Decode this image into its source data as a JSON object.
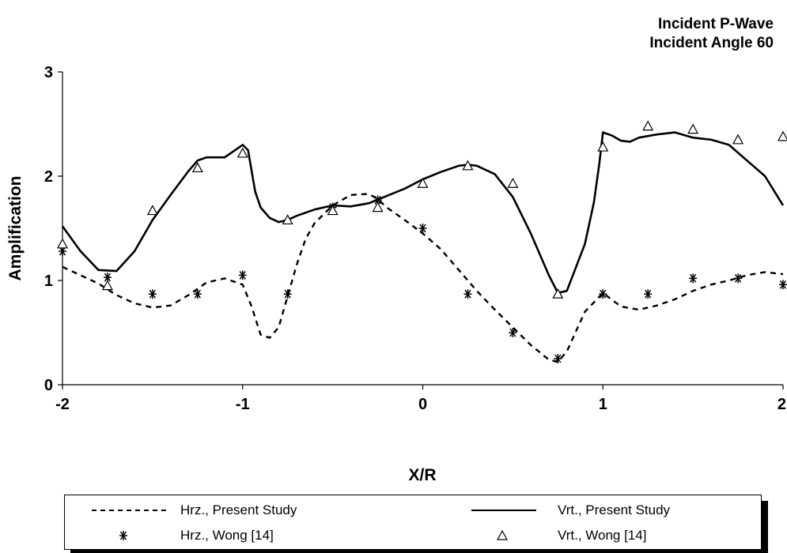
{
  "title_lines": [
    "Incident P-Wave",
    "Incident Angle 60"
  ],
  "chart_data": {
    "type": "line",
    "xlabel": "X/R",
    "ylabel": "Amplification",
    "xlim": [
      -2,
      2
    ],
    "ylim": [
      0,
      3
    ],
    "xticks": [
      -2,
      -1,
      0,
      1,
      2
    ],
    "yticks": [
      0,
      1,
      2,
      3
    ],
    "xtick_labels": [
      "-2",
      "-1",
      "0",
      "1",
      "2"
    ],
    "ytick_labels": [
      "0",
      "1",
      "2",
      "3"
    ],
    "grid": false,
    "legend_position": "bottom",
    "series": [
      {
        "name": "Hrz., Present Study",
        "style": "dashed",
        "x": [
          -2.0,
          -1.9,
          -1.8,
          -1.7,
          -1.6,
          -1.5,
          -1.4,
          -1.3,
          -1.2,
          -1.1,
          -1.0,
          -0.95,
          -0.9,
          -0.85,
          -0.8,
          -0.75,
          -0.7,
          -0.65,
          -0.6,
          -0.5,
          -0.4,
          -0.3,
          -0.25,
          -0.2,
          -0.1,
          0.0,
          0.1,
          0.2,
          0.3,
          0.4,
          0.5,
          0.6,
          0.7,
          0.75,
          0.8,
          0.9,
          1.0,
          1.1,
          1.2,
          1.3,
          1.4,
          1.5,
          1.6,
          1.7,
          1.8,
          1.9,
          2.0
        ],
        "y": [
          1.13,
          1.05,
          0.97,
          0.86,
          0.78,
          0.74,
          0.76,
          0.86,
          0.98,
          1.02,
          0.96,
          0.75,
          0.48,
          0.45,
          0.55,
          0.85,
          1.15,
          1.4,
          1.55,
          1.72,
          1.82,
          1.83,
          1.78,
          1.7,
          1.58,
          1.45,
          1.3,
          1.1,
          0.9,
          0.72,
          0.55,
          0.38,
          0.24,
          0.22,
          0.32,
          0.7,
          0.88,
          0.75,
          0.72,
          0.76,
          0.82,
          0.9,
          0.96,
          1.0,
          1.05,
          1.08,
          1.06
        ]
      },
      {
        "name": "Vrt., Present Study",
        "style": "solid",
        "x": [
          -2.0,
          -1.9,
          -1.8,
          -1.7,
          -1.6,
          -1.5,
          -1.4,
          -1.3,
          -1.25,
          -1.2,
          -1.1,
          -1.05,
          -1.0,
          -0.97,
          -0.93,
          -0.9,
          -0.85,
          -0.8,
          -0.75,
          -0.7,
          -0.6,
          -0.5,
          -0.4,
          -0.3,
          -0.2,
          -0.1,
          0.0,
          0.1,
          0.2,
          0.25,
          0.3,
          0.4,
          0.5,
          0.6,
          0.7,
          0.75,
          0.8,
          0.9,
          0.95,
          0.98,
          1.0,
          1.05,
          1.1,
          1.15,
          1.2,
          1.3,
          1.4,
          1.5,
          1.6,
          1.7,
          1.8,
          1.9,
          2.0
        ],
        "y": [
          1.52,
          1.28,
          1.1,
          1.09,
          1.28,
          1.58,
          1.82,
          2.05,
          2.15,
          2.18,
          2.18,
          2.24,
          2.3,
          2.25,
          1.85,
          1.7,
          1.6,
          1.56,
          1.58,
          1.62,
          1.68,
          1.72,
          1.71,
          1.74,
          1.81,
          1.88,
          1.97,
          2.04,
          2.1,
          2.11,
          2.1,
          2.02,
          1.8,
          1.45,
          1.05,
          0.88,
          0.9,
          1.35,
          1.75,
          2.12,
          2.42,
          2.39,
          2.34,
          2.33,
          2.37,
          2.4,
          2.42,
          2.37,
          2.35,
          2.3,
          2.15,
          2.0,
          1.72
        ]
      },
      {
        "name": "Hrz., Wong [14]",
        "style": "star-marker",
        "x": [
          -2.0,
          -1.75,
          -1.5,
          -1.25,
          -1.0,
          -0.75,
          -0.5,
          -0.25,
          0.0,
          0.25,
          0.5,
          0.75,
          1.0,
          1.25,
          1.5,
          1.75,
          2.0
        ],
        "y": [
          1.28,
          1.03,
          0.87,
          0.87,
          1.05,
          0.87,
          1.7,
          1.77,
          1.5,
          0.87,
          0.5,
          0.25,
          0.87,
          0.87,
          1.02,
          1.02,
          0.96
        ]
      },
      {
        "name": "Vrt., Wong [14]",
        "style": "triangle-marker",
        "x": [
          -2.0,
          -1.75,
          -1.5,
          -1.25,
          -1.0,
          -0.75,
          -0.5,
          -0.25,
          0.0,
          0.25,
          0.5,
          0.75,
          1.0,
          1.25,
          1.5,
          1.75,
          2.0
        ],
        "y": [
          1.35,
          0.95,
          1.67,
          2.08,
          2.22,
          1.58,
          1.67,
          1.7,
          1.93,
          2.1,
          1.93,
          0.87,
          2.28,
          2.48,
          2.45,
          2.35,
          2.38
        ]
      }
    ]
  },
  "legend": {
    "items": [
      {
        "label": "Hrz., Present Study",
        "symbol": "dashed-line"
      },
      {
        "label": "Vrt., Present Study",
        "symbol": "solid-line"
      },
      {
        "label": "Hrz., Wong [14]",
        "symbol": "star-marker"
      },
      {
        "label": "Vrt., Wong [14]",
        "symbol": "triangle-marker"
      }
    ]
  }
}
